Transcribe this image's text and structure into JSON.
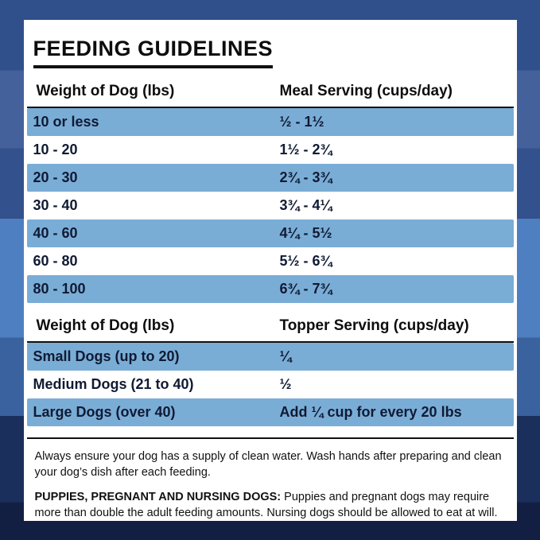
{
  "panel": {
    "title": "FEEDING GUIDELINES",
    "tables": [
      {
        "col1_header": "Weight of Dog (lbs)",
        "col2_header": "Meal Serving (cups/day)",
        "rows": [
          {
            "weight": "10 or less",
            "serving": "½ - 1½",
            "highlight": true
          },
          {
            "weight": "10 - 20",
            "serving": "1½ - 2¾",
            "highlight": false
          },
          {
            "weight": "20 - 30",
            "serving": "2¾ - 3¾",
            "highlight": true
          },
          {
            "weight": "30 - 40",
            "serving": "3¾ - 4¼",
            "highlight": false
          },
          {
            "weight": "40 - 60",
            "serving": "4¼ - 5½",
            "highlight": true
          },
          {
            "weight": "60 - 80",
            "serving": "5½ - 6¾",
            "highlight": false
          },
          {
            "weight": "80 - 100",
            "serving": "6¾ - 7¾",
            "highlight": true
          }
        ]
      },
      {
        "col1_header": "Weight of Dog (lbs)",
        "col2_header": "Topper Serving (cups/day)",
        "rows": [
          {
            "weight": "Small Dogs (up to 20)",
            "serving": "¼",
            "highlight": true
          },
          {
            "weight": "Medium Dogs (21 to 40)",
            "serving": "½",
            "highlight": false
          },
          {
            "weight": "Large Dogs (over 40)",
            "serving": "Add ¼ cup for every 20 lbs",
            "highlight": true
          }
        ]
      }
    ],
    "notes": [
      {
        "lead": "",
        "text": "Always ensure your dog has a supply of clean water. Wash hands after preparing and clean your dog’s dish after each feeding."
      },
      {
        "lead": "PUPPIES, PREGNANT AND NURSING DOGS:",
        "text": " Puppies and pregnant dogs may require more than double the adult feeding amounts. Nursing dogs should be allowed to eat at will."
      }
    ]
  },
  "colors": {
    "row_highlight": "#7aadd6",
    "row_text": "#101a33",
    "heading_text": "#0d0d0d",
    "card_background": "#ffffff",
    "background_bands": [
      "#30508b",
      "#44619c",
      "#33518c",
      "#4e7fc0",
      "#39629f",
      "#1b2f5c",
      "#121f42"
    ]
  }
}
